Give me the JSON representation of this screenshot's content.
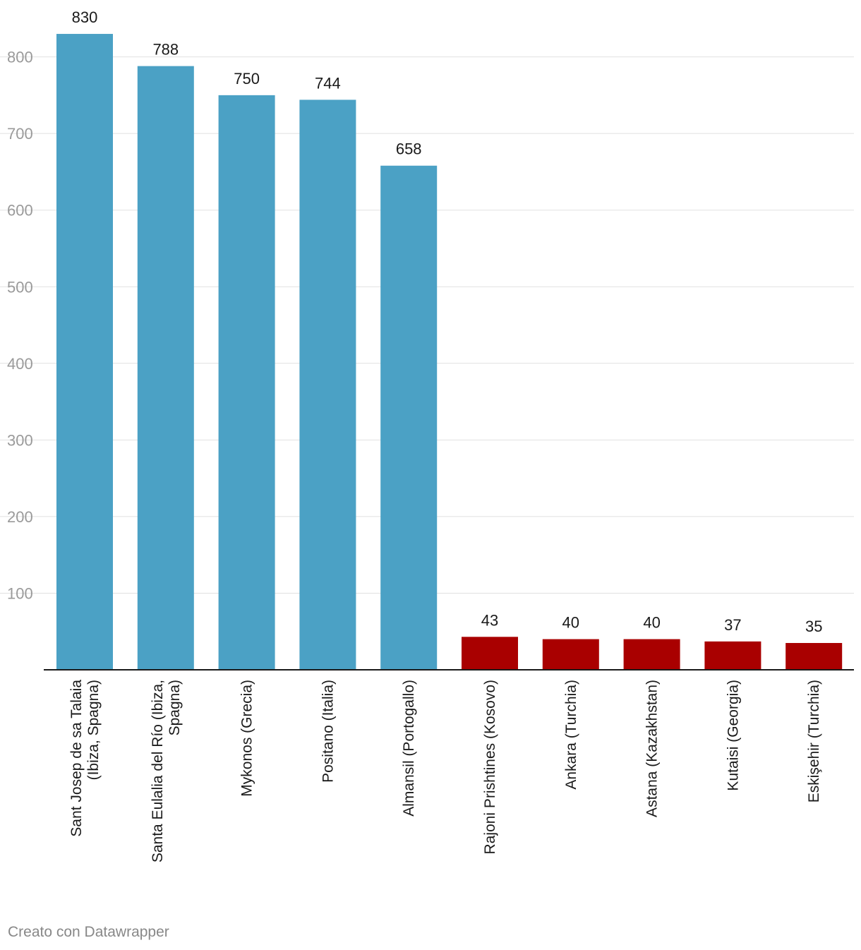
{
  "chart_data": {
    "type": "bar",
    "categories": [
      [
        "Sant Josep de sa Talaia",
        "(Ibiza, Spagna)"
      ],
      [
        "Santa Eulalia del Río (Ibiza,",
        "Spagna)"
      ],
      [
        "Mykonos (Grecia)"
      ],
      [
        "Positano (Italia)"
      ],
      [
        "Almansil (Portogallo)"
      ],
      [
        "Rajoni Prishtines (Kosovo)"
      ],
      [
        "Ankara (Turchia)"
      ],
      [
        "Astana (Kazakhstan)"
      ],
      [
        "Kutaisi (Georgia)"
      ],
      [
        "Eskişehir (Turchia)"
      ]
    ],
    "values": [
      830,
      788,
      750,
      744,
      658,
      43,
      40,
      40,
      37,
      35
    ],
    "value_labels": [
      "830",
      "788",
      "750",
      "744",
      "658",
      "43",
      "40",
      "40",
      "37",
      "35"
    ],
    "bar_colors": [
      "#4ba1c5",
      "#4ba1c5",
      "#4ba1c5",
      "#4ba1c5",
      "#4ba1c5",
      "#a90000",
      "#a90000",
      "#a90000",
      "#a90000",
      "#a90000"
    ],
    "yticks": [
      100,
      200,
      300,
      400,
      500,
      600,
      700,
      800
    ],
    "ylim": [
      0,
      830
    ],
    "title": "",
    "xlabel": "",
    "ylabel": "",
    "grid": true
  },
  "footer": {
    "credit": "Creato con Datawrapper"
  }
}
